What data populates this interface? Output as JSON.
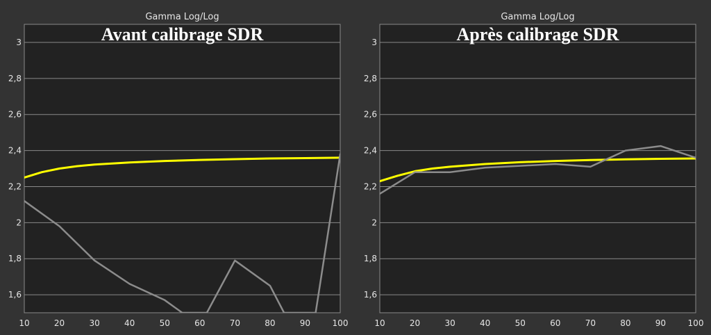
{
  "chart_data": [
    {
      "type": "line",
      "title": "Gamma Log/Log",
      "overlay_title": "Avant calibrage SDR",
      "x_ticks": [
        10,
        20,
        30,
        40,
        50,
        60,
        70,
        80,
        90,
        100
      ],
      "y_ticks": [
        1.6,
        1.8,
        2,
        2.2,
        2.4,
        2.6,
        2.8,
        3
      ],
      "y_tick_labels": [
        "1,6",
        "1,8",
        "2",
        "2,2",
        "2,4",
        "2,6",
        "2,8",
        "3"
      ],
      "xlim": [
        10,
        100
      ],
      "ylim": [
        1.5,
        3.1
      ],
      "grid": true,
      "series": [
        {
          "color": "#ffff00",
          "x": [
            10,
            15,
            20,
            25,
            30,
            40,
            50,
            60,
            70,
            80,
            90,
            100
          ],
          "y": [
            2.25,
            2.28,
            2.3,
            2.313,
            2.322,
            2.334,
            2.342,
            2.348,
            2.352,
            2.356,
            2.358,
            2.36
          ]
        },
        {
          "color": "#8c8c8c",
          "x": [
            10,
            20,
            30,
            40,
            50,
            55,
            62,
            70,
            80,
            84,
            93,
            100
          ],
          "y": [
            2.12,
            1.98,
            1.79,
            1.66,
            1.57,
            1.5,
            1.5,
            1.79,
            1.65,
            1.5,
            1.5,
            2.38
          ]
        }
      ]
    },
    {
      "type": "line",
      "title": "Gamma Log/Log",
      "overlay_title": "Après calibrage SDR",
      "x_ticks": [
        10,
        20,
        30,
        40,
        50,
        60,
        70,
        80,
        90,
        100
      ],
      "y_ticks": [
        1.6,
        1.8,
        2,
        2.2,
        2.4,
        2.6,
        2.8,
        3
      ],
      "y_tick_labels": [
        "1,6",
        "1,8",
        "2",
        "2,2",
        "2,4",
        "2,6",
        "2,8",
        "3"
      ],
      "xlim": [
        10,
        100
      ],
      "ylim": [
        1.5,
        3.1
      ],
      "grid": true,
      "series": [
        {
          "color": "#ffff00",
          "x": [
            10,
            15,
            20,
            25,
            30,
            40,
            50,
            60,
            70,
            80,
            90,
            100
          ],
          "y": [
            2.23,
            2.26,
            2.285,
            2.3,
            2.31,
            2.325,
            2.335,
            2.342,
            2.347,
            2.351,
            2.354,
            2.356
          ]
        },
        {
          "color": "#8c8c8c",
          "x": [
            10,
            20,
            30,
            40,
            50,
            60,
            70,
            80,
            90,
            100
          ],
          "y": [
            2.16,
            2.28,
            2.28,
            2.305,
            2.315,
            2.325,
            2.31,
            2.4,
            2.425,
            2.36
          ]
        }
      ]
    }
  ]
}
